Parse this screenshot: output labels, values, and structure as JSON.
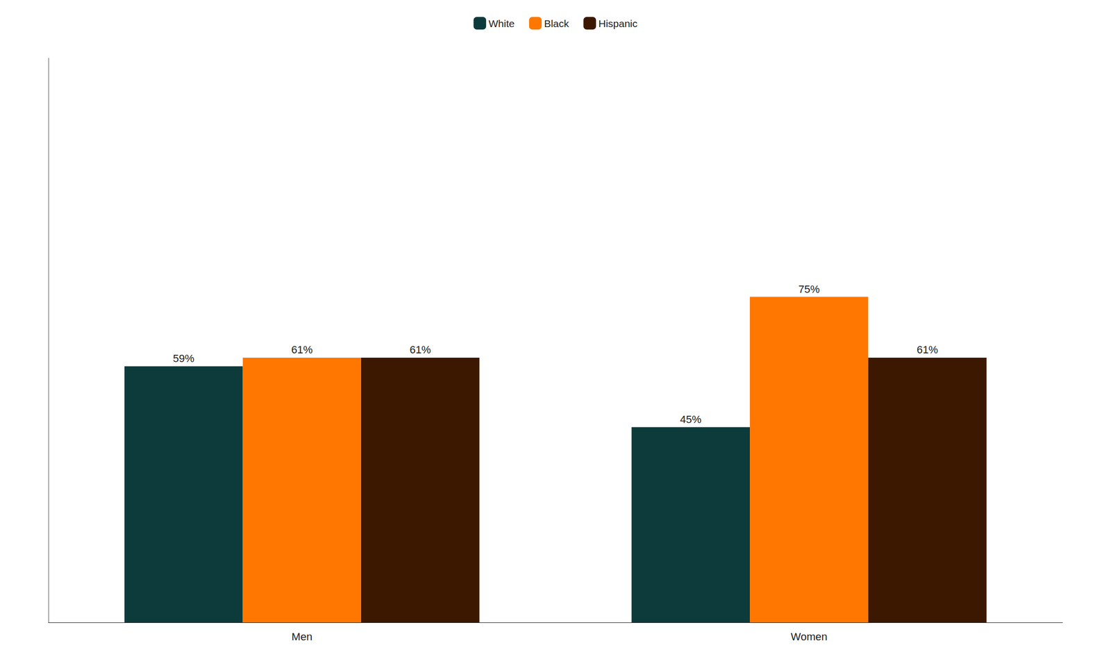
{
  "chart_data": {
    "type": "bar",
    "categories": [
      "Men",
      "Women"
    ],
    "series": [
      {
        "name": "White",
        "color": "#0d3b3b",
        "values": [
          59,
          45
        ],
        "value_labels": [
          "59%",
          "45%"
        ]
      },
      {
        "name": "Black",
        "color": "#FF7700",
        "values": [
          61,
          75
        ],
        "value_labels": [
          "61%",
          "75%"
        ]
      },
      {
        "name": "Hispanic",
        "color": "#3d1800",
        "values": [
          61,
          61
        ],
        "value_labels": [
          "61%",
          "61%"
        ]
      }
    ],
    "ylim": [
      0,
      130
    ],
    "grid": false,
    "legend": "top",
    "data_labels": true,
    "tick_labels": "x"
  }
}
